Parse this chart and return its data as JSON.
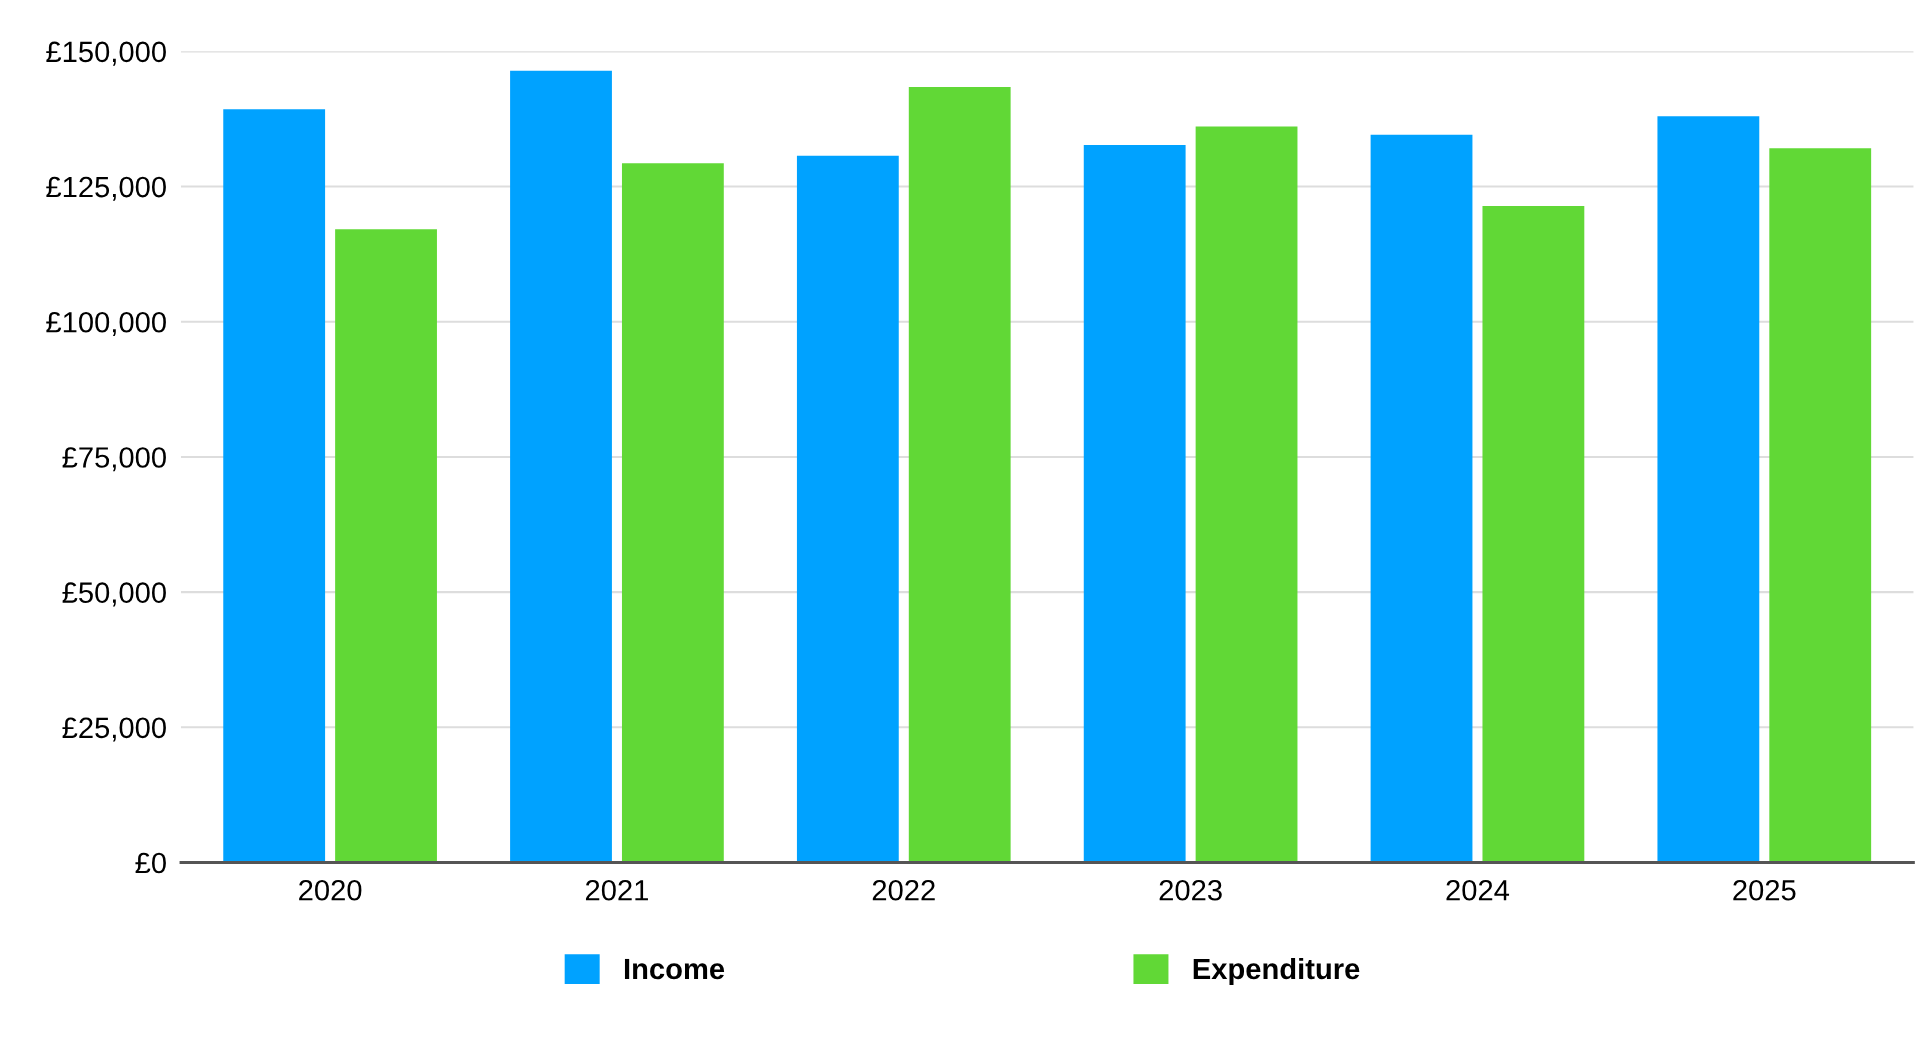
{
  "chart_data": {
    "type": "bar",
    "categories": [
      "2020",
      "2021",
      "2022",
      "2023",
      "2024",
      "2025"
    ],
    "series": [
      {
        "name": "Income",
        "color": "#00a2ff",
        "values": [
          139300,
          146400,
          130700,
          132700,
          134600,
          138000
        ]
      },
      {
        "name": "Expenditure",
        "color": "#61d836",
        "values": [
          117100,
          129300,
          143400,
          136100,
          121400,
          132100
        ]
      }
    ],
    "ylim": [
      0,
      150000
    ],
    "yticks": [
      {
        "value": 0,
        "label": "£0"
      },
      {
        "value": 25000,
        "label": "£25,000"
      },
      {
        "value": 50000,
        "label": "£50,000"
      },
      {
        "value": 75000,
        "label": "£75,000"
      },
      {
        "value": 100000,
        "label": "£100,000"
      },
      {
        "value": 125000,
        "label": "£125,000"
      },
      {
        "value": 150000,
        "label": "£150,000"
      }
    ],
    "grid": "y",
    "legend": "bottom"
  }
}
